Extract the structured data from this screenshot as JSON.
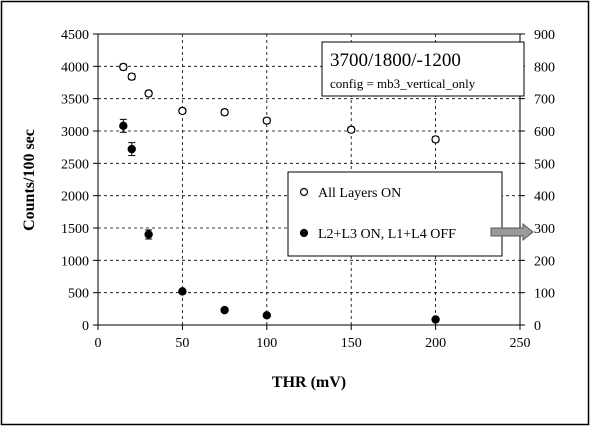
{
  "chart_data": {
    "type": "scatter",
    "xlabel": "THR (mV)",
    "ylabel": "Counts/100 sec",
    "xlim": [
      0,
      250
    ],
    "x_ticks": [
      0,
      50,
      100,
      150,
      200,
      250
    ],
    "ylim_left": [
      0,
      4500
    ],
    "y_ticks_left": [
      0,
      500,
      1000,
      1500,
      2000,
      2500,
      3000,
      3500,
      4000,
      4500
    ],
    "ylim_right": [
      0,
      900
    ],
    "y_ticks_right": [
      0,
      100,
      200,
      300,
      400,
      500,
      600,
      700,
      800,
      900
    ],
    "grid": "dashed",
    "legend_position": "center-right",
    "annotation": {
      "title": "3700/1800/-1200",
      "subtitle": "config = mb3_vertical_only"
    },
    "series": [
      {
        "name": "All Layers ON",
        "marker": "open-circle",
        "axis": "left",
        "x": [
          15,
          20,
          30,
          50,
          75,
          100,
          150,
          200
        ],
        "y": [
          3990,
          3840,
          3580,
          3310,
          3290,
          3160,
          3020,
          2870
        ],
        "yerr": [
          45,
          45,
          40,
          40,
          40,
          40,
          40,
          40
        ]
      },
      {
        "name": "L2+L3 ON, L1+L4 OFF",
        "marker": "filled-circle",
        "axis": "right",
        "x": [
          15,
          20,
          30,
          50,
          75,
          100,
          200
        ],
        "y": [
          616,
          544,
          280,
          104,
          46,
          30,
          17
        ],
        "yerr": [
          20,
          20,
          14,
          4,
          3,
          3,
          2
        ]
      }
    ]
  }
}
